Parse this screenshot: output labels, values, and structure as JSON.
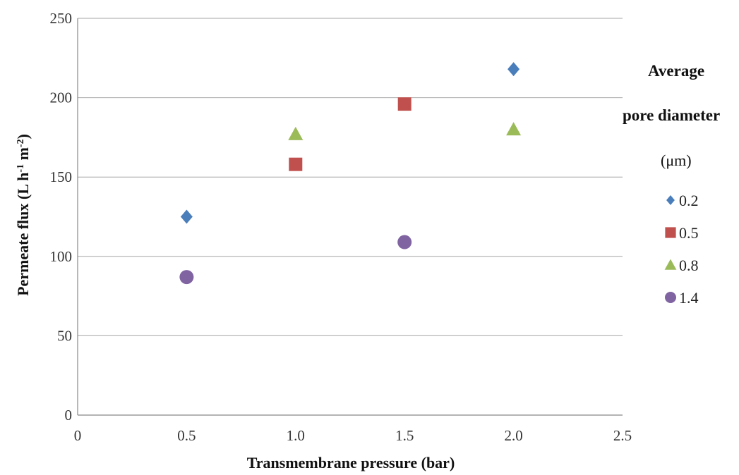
{
  "chart_data": {
    "type": "scatter",
    "xlabel": "Transmembrane pressure (bar)",
    "ylabel_main": "Permeate flux (L h",
    "ylabel_sup1": "-1",
    "ylabel_mid": " m",
    "ylabel_sup2": "-2",
    "ylabel_end": ")",
    "xlim": [
      0,
      2.5
    ],
    "ylim": [
      0,
      250
    ],
    "x_ticks": [
      "0",
      "0.5",
      "1.0",
      "1.5",
      "2.0",
      "2.5"
    ],
    "x_tick_values": [
      0,
      0.5,
      1.0,
      1.5,
      2.0,
      2.5
    ],
    "y_ticks": [
      "0",
      "50",
      "100",
      "150",
      "200",
      "250"
    ],
    "y_tick_values": [
      0,
      50,
      100,
      150,
      200,
      250
    ],
    "grid": "horizontal",
    "legend_position": "right",
    "legend_title_line1": "Average",
    "legend_title_line2": "pore diameter",
    "legend_title_unit": "(μm)",
    "series": [
      {
        "name": "0.2",
        "marker": "diamond",
        "color": "#4A7EBB",
        "points": [
          [
            0.5,
            125
          ],
          [
            2.0,
            218
          ]
        ]
      },
      {
        "name": "0.5",
        "marker": "square",
        "color": "#C0504D",
        "points": [
          [
            1.0,
            158
          ],
          [
            1.5,
            196
          ]
        ]
      },
      {
        "name": "0.8",
        "marker": "triangle",
        "color": "#9BBB59",
        "points": [
          [
            1.0,
            177
          ],
          [
            2.0,
            180
          ]
        ]
      },
      {
        "name": "1.4",
        "marker": "circle",
        "color": "#8064A2",
        "points": [
          [
            0.5,
            87
          ],
          [
            1.5,
            109
          ]
        ]
      }
    ]
  }
}
